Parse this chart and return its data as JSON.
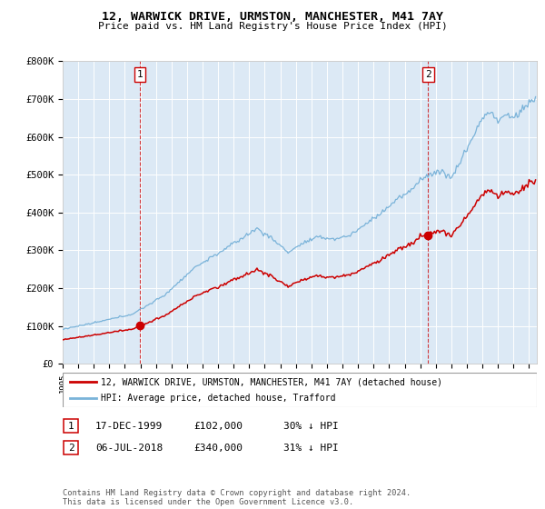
{
  "title": "12, WARWICK DRIVE, URMSTON, MANCHESTER, M41 7AY",
  "subtitle": "Price paid vs. HM Land Registry's House Price Index (HPI)",
  "hpi_color": "#7ab3d9",
  "price_color": "#cc0000",
  "plot_bg": "#dce9f5",
  "grid_color": "#ffffff",
  "ylim": [
    0,
    800000
  ],
  "yticks": [
    0,
    100000,
    200000,
    300000,
    400000,
    500000,
    600000,
    700000,
    800000
  ],
  "ytick_labels": [
    "£0",
    "£100K",
    "£200K",
    "£300K",
    "£400K",
    "£500K",
    "£600K",
    "£700K",
    "£800K"
  ],
  "sale1_date_num": 1999.96,
  "sale1_price": 102000,
  "sale2_date_num": 2018.51,
  "sale2_price": 340000,
  "legend_red_label": "12, WARWICK DRIVE, URMSTON, MANCHESTER, M41 7AY (detached house)",
  "legend_blue_label": "HPI: Average price, detached house, Trafford",
  "footer": "Contains HM Land Registry data © Crown copyright and database right 2024.\nThis data is licensed under the Open Government Licence v3.0.",
  "xmin": 1995.0,
  "xmax": 2025.5,
  "xtick_start": 1995,
  "xtick_end": 2026
}
